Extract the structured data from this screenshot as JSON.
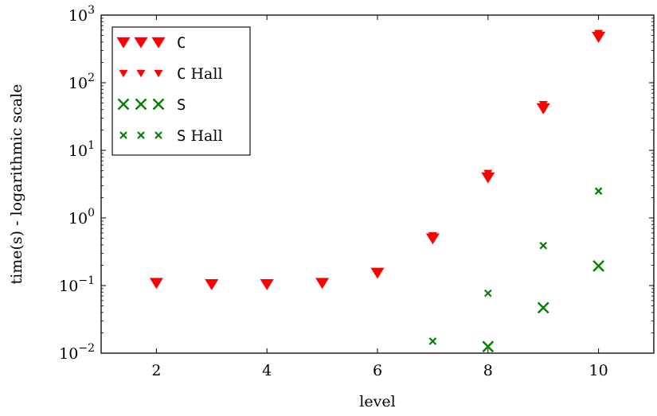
{
  "chart_data": {
    "type": "scatter",
    "xlabel": "level",
    "ylabel": "time(s) - logarithmic scale",
    "xlim": [
      1,
      11
    ],
    "ylim": [
      0.01,
      1000
    ],
    "yscale": "log",
    "x_ticks": [
      "2",
      "4",
      "6",
      "8",
      "10"
    ],
    "x_tick_values": [
      2,
      4,
      6,
      8,
      10
    ],
    "y_ticks": [
      {
        "base": "10",
        "exp": "−2",
        "value": 0.01
      },
      {
        "base": "10",
        "exp": "−1",
        "value": 0.1
      },
      {
        "base": "10",
        "exp": "0",
        "value": 1
      },
      {
        "base": "10",
        "exp": "1",
        "value": 10
      },
      {
        "base": "10",
        "exp": "2",
        "value": 100
      },
      {
        "base": "10",
        "exp": "3",
        "value": 1000
      }
    ],
    "legend": {
      "position": "top-left",
      "entries": [
        {
          "code": "C",
          "suffix": ""
        },
        {
          "code": "C",
          "suffix": " Hall"
        },
        {
          "code": "S",
          "suffix": ""
        },
        {
          "code": "S",
          "suffix": " Hall"
        }
      ]
    },
    "grid": false,
    "series": [
      {
        "marker": "triangle-down-large",
        "color": "#ff0000",
        "x": [
          2,
          3,
          4,
          5,
          6,
          7,
          8,
          9,
          10
        ],
        "y": [
          0.11,
          0.105,
          0.105,
          0.11,
          0.155,
          0.5,
          4.0,
          42,
          480
        ]
      },
      {
        "marker": "triangle-down-small",
        "color": "#ff0000",
        "x": [
          7,
          8,
          9,
          10
        ],
        "y": [
          0.55,
          4.6,
          48,
          540
        ]
      },
      {
        "marker": "x-large",
        "color": "#008000",
        "x": [
          8,
          9,
          10
        ],
        "y": [
          0.0125,
          0.047,
          0.195
        ]
      },
      {
        "marker": "x-small",
        "color": "#008000",
        "x": [
          7,
          8,
          9,
          10
        ],
        "y": [
          0.015,
          0.077,
          0.39,
          2.5
        ]
      }
    ]
  }
}
